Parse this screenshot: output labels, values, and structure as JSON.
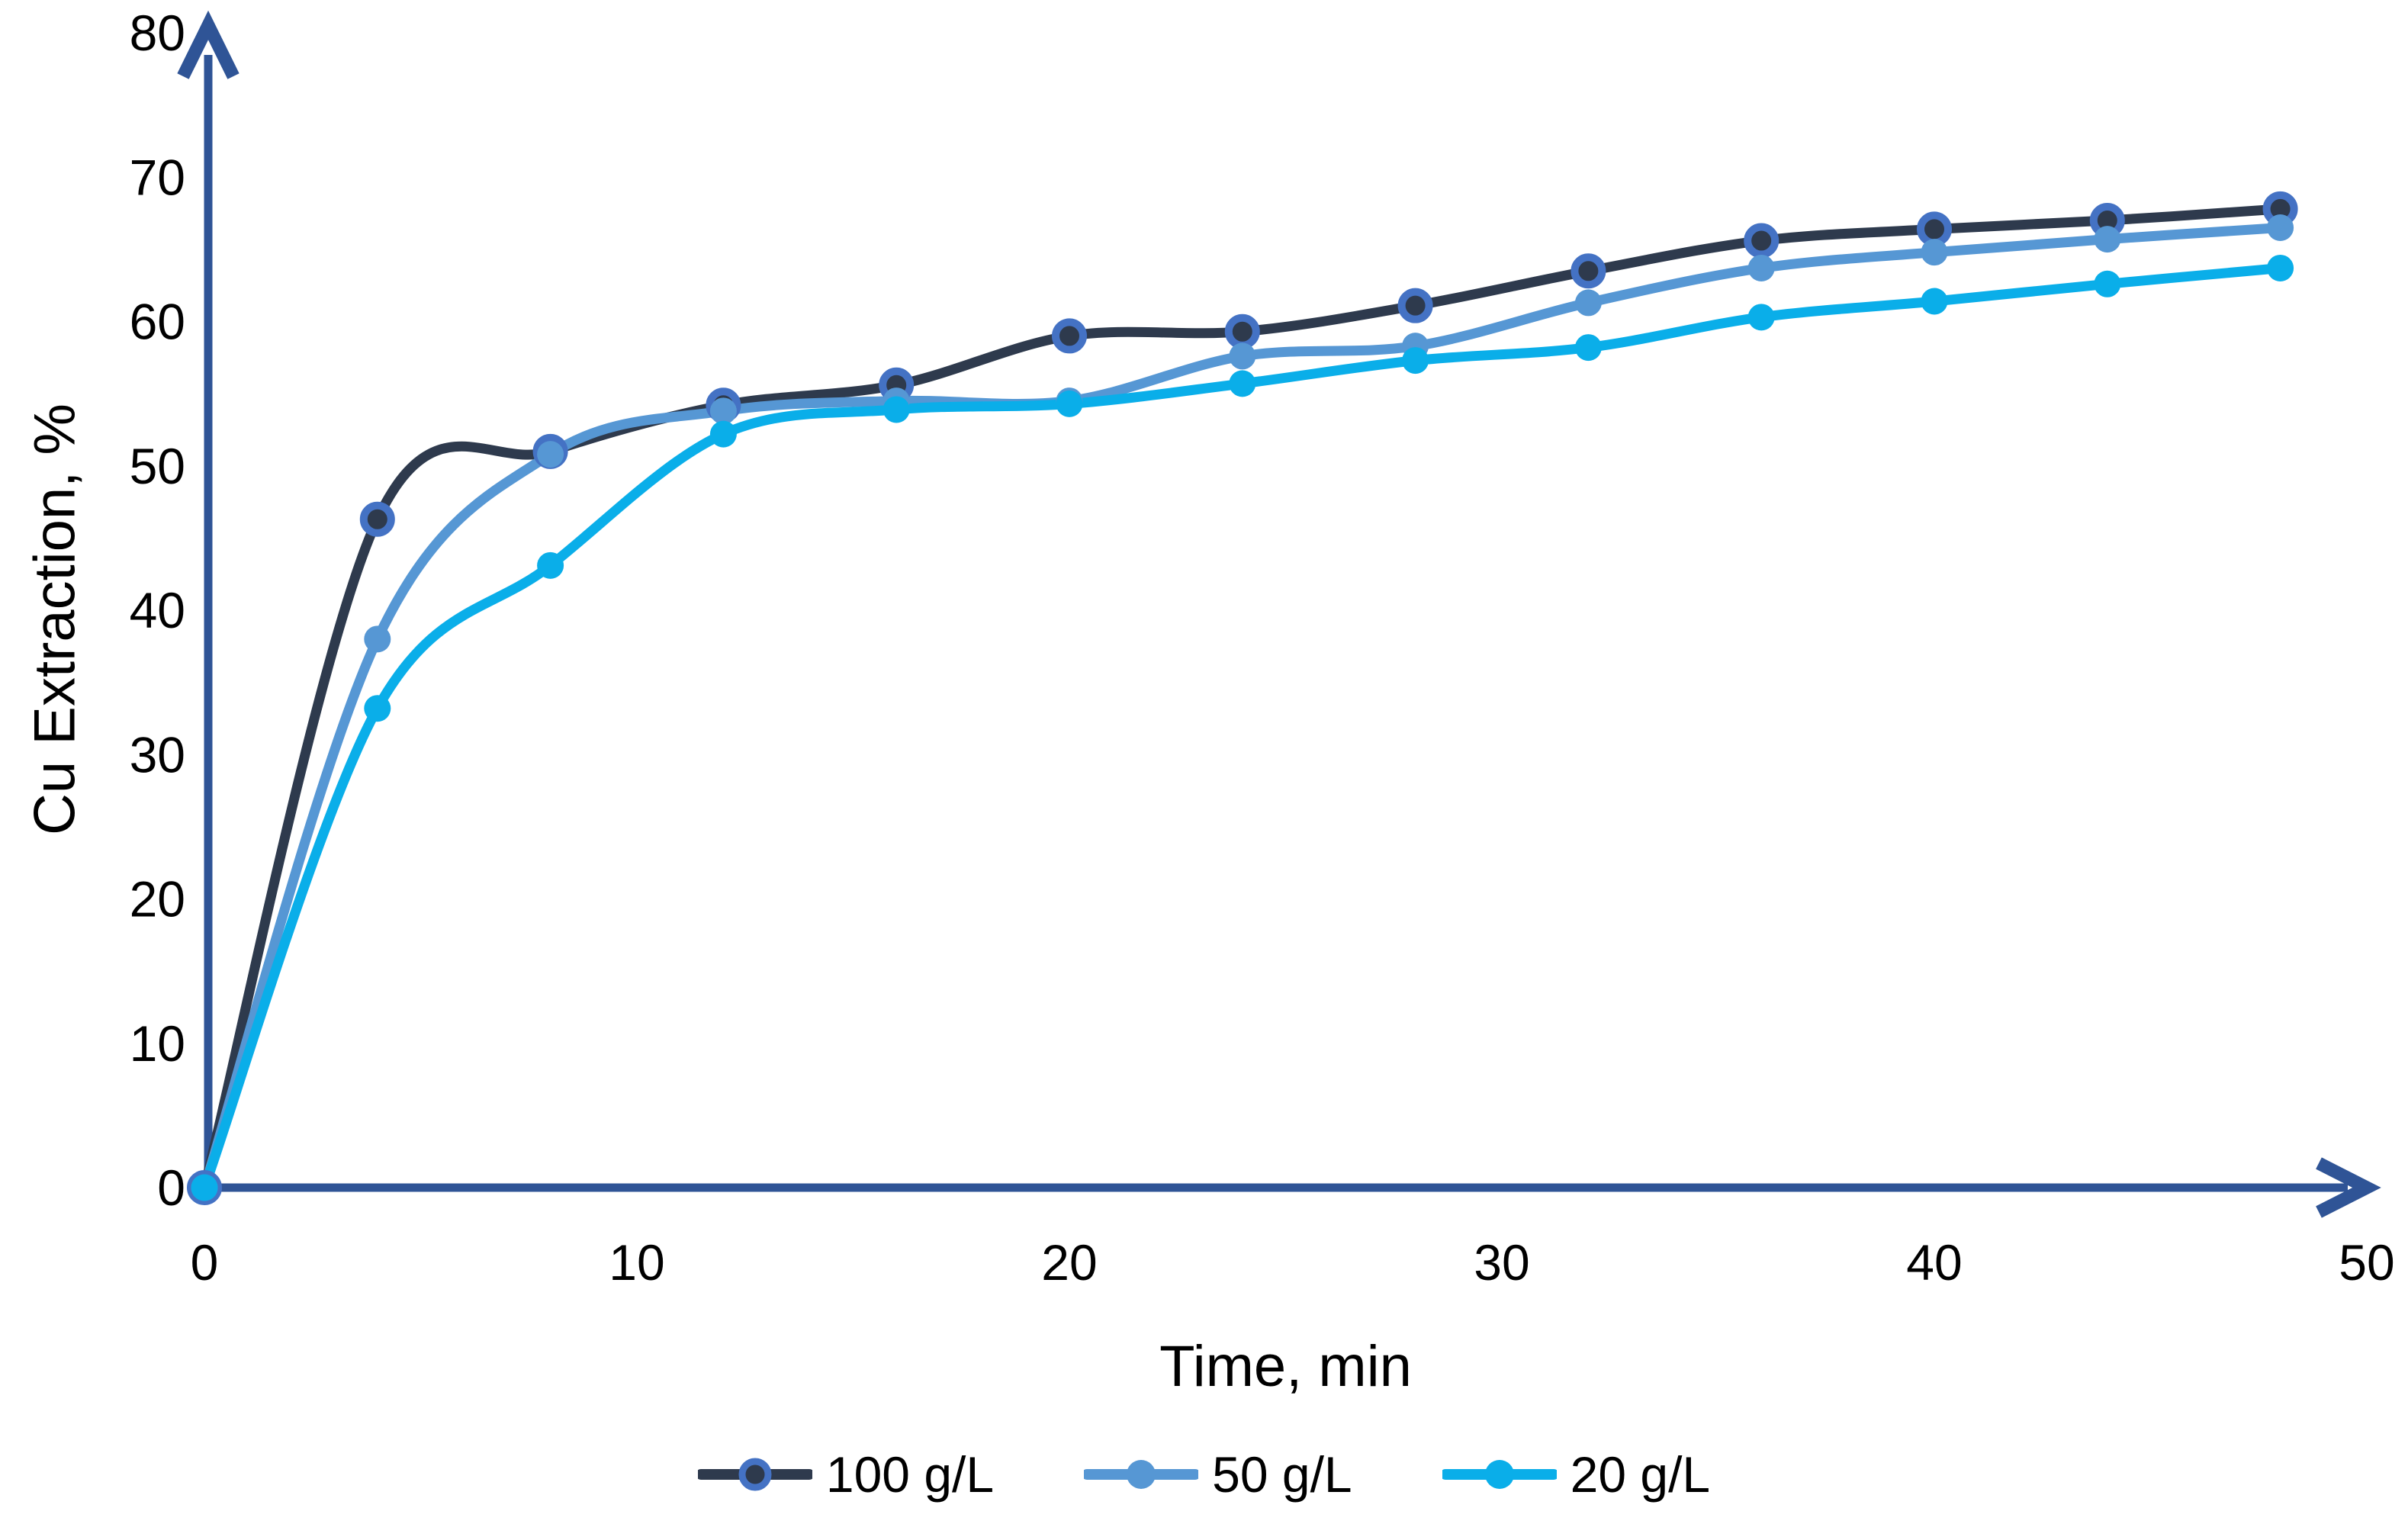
{
  "chart_data": {
    "type": "line",
    "title": "",
    "xlabel": "Time, min",
    "ylabel": "Cu Extraction, %",
    "xlim": [
      0,
      50
    ],
    "ylim": [
      0,
      80
    ],
    "xticks": [
      0,
      10,
      20,
      30,
      40,
      50
    ],
    "yticks": [
      0,
      10,
      20,
      30,
      40,
      50,
      60,
      70,
      80
    ],
    "grid": false,
    "legend_position": "bottom",
    "axis_color": "#2F5496",
    "x": [
      0,
      4,
      8,
      12,
      16,
      20,
      24,
      28,
      32,
      36,
      40,
      44,
      48
    ],
    "series": [
      {
        "name": "100 g/L",
        "line_color": "#2E3A4D",
        "marker_fill": "#2E3A4D",
        "marker_ring": "#4472C4",
        "values": [
          0,
          46.3,
          51.0,
          54.2,
          55.6,
          59.0,
          59.3,
          61.1,
          63.5,
          65.6,
          66.4,
          67.0,
          67.8
        ]
      },
      {
        "name": "50 g/L",
        "line_color": "#5697D4",
        "marker_fill": "#5697D4",
        "marker_ring": null,
        "values": [
          0,
          38.0,
          50.8,
          53.8,
          54.5,
          54.5,
          57.6,
          58.3,
          61.3,
          63.7,
          64.8,
          65.7,
          66.5
        ]
      },
      {
        "name": "20 g/L",
        "line_color": "#0AAEE9",
        "marker_fill": "#0AAEE9",
        "marker_ring": null,
        "values": [
          0,
          33.2,
          43.1,
          52.2,
          53.9,
          54.3,
          55.7,
          57.3,
          58.2,
          60.3,
          61.4,
          62.6,
          63.7
        ]
      }
    ]
  }
}
